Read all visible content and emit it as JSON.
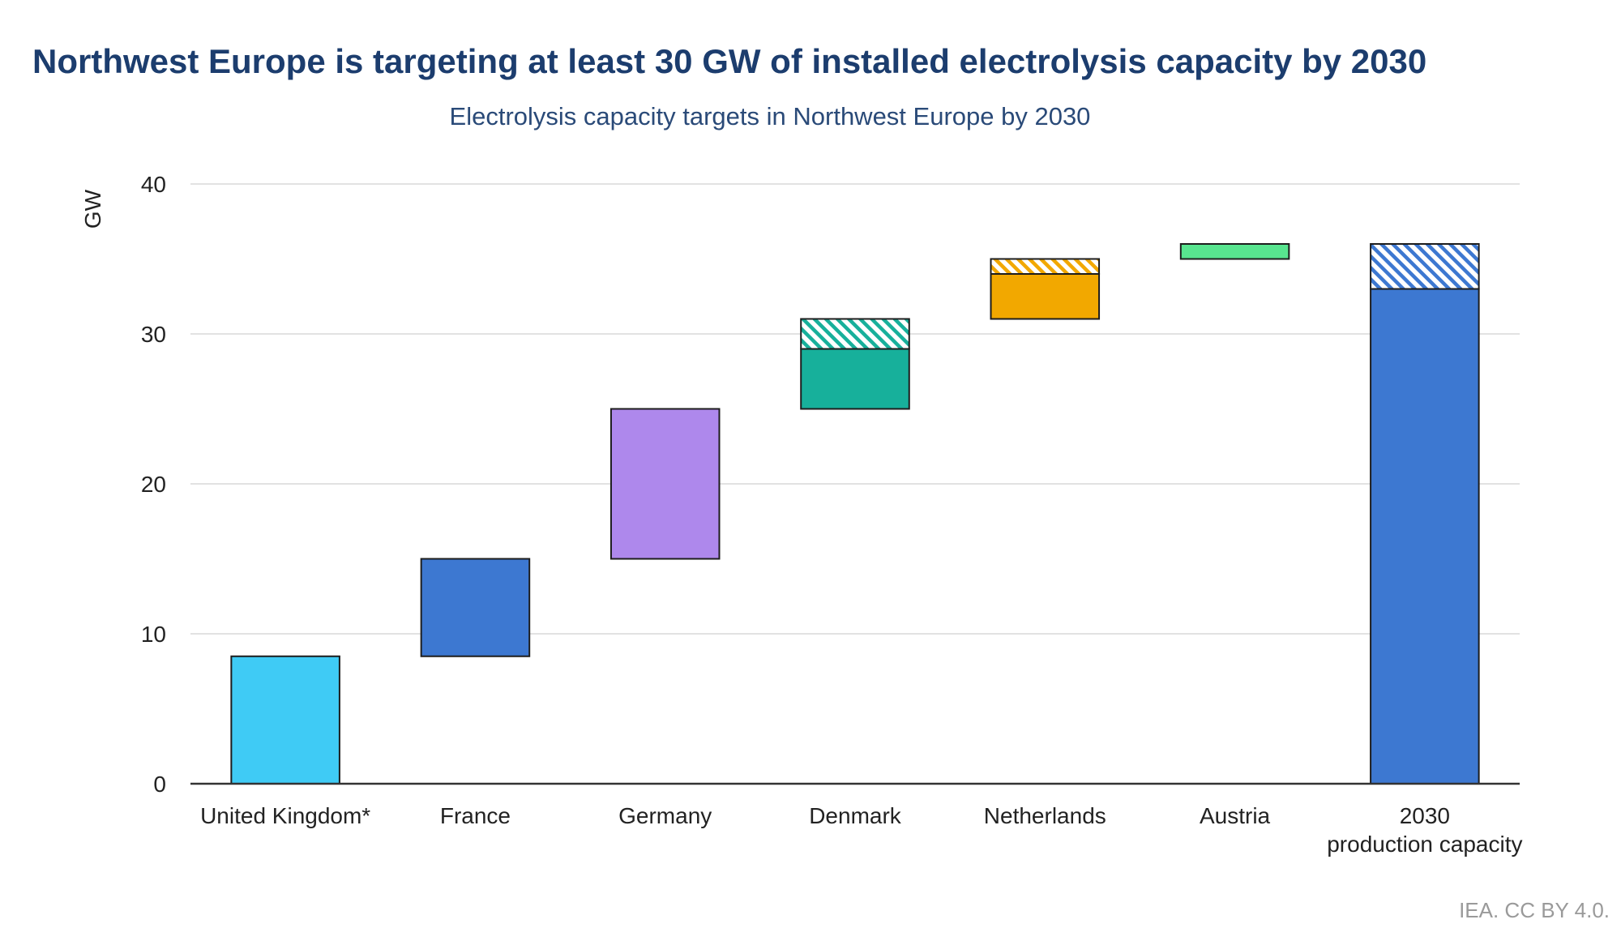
{
  "title": "Northwest Europe is targeting at least 30 GW of installed electrolysis capacity by 2030",
  "subtitle": "Electrolysis capacity targets in Northwest Europe by 2030",
  "source": "IEA. CC BY 4.0.",
  "chart_data": {
    "type": "bar",
    "subtype": "waterfall",
    "ylabel": "GW",
    "ylim": [
      0,
      40
    ],
    "yticks": [
      0,
      10,
      20,
      30,
      40
    ],
    "grid": true,
    "categories": [
      "United Kingdom*",
      "France",
      "Germany",
      "Denmark",
      "Netherlands",
      "Austria",
      "2030 production capacity"
    ],
    "category_lines": [
      [
        "United Kingdom*"
      ],
      [
        "France"
      ],
      [
        "Germany"
      ],
      [
        "Denmark"
      ],
      [
        "Netherlands"
      ],
      [
        "Austria"
      ],
      [
        "2030",
        "production capacity"
      ]
    ],
    "bars": [
      {
        "category": "United Kingdom*",
        "base": 0,
        "solid": 8.5,
        "hatched": 0,
        "color": "#3fcbf5"
      },
      {
        "category": "France",
        "base": 8.5,
        "solid": 6.5,
        "hatched": 0,
        "color": "#3d78d1"
      },
      {
        "category": "Germany",
        "base": 15,
        "solid": 10,
        "hatched": 0,
        "color": "#ae88ec"
      },
      {
        "category": "Denmark",
        "base": 25,
        "solid": 4,
        "hatched": 2,
        "color": "#17b09b"
      },
      {
        "category": "Netherlands",
        "base": 31,
        "solid": 3,
        "hatched": 1,
        "color": "#f2a800"
      },
      {
        "category": "Austria",
        "base": 35,
        "solid": 1,
        "hatched": 0,
        "color": "#58e58f"
      },
      {
        "category": "2030 production capacity",
        "base": 0,
        "solid": 33,
        "hatched": 3,
        "color": "#3d78d1"
      }
    ]
  }
}
